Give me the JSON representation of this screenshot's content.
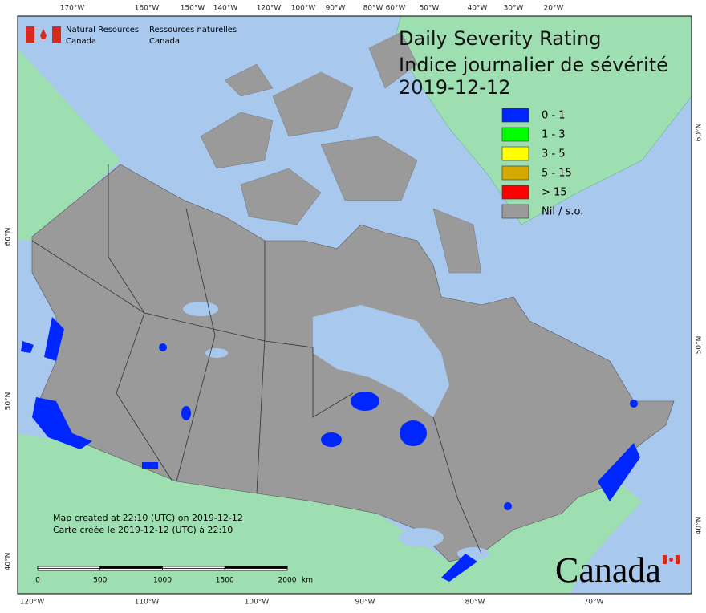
{
  "header": {
    "agency_en": [
      "Natural Resources",
      "Canada"
    ],
    "agency_fr": [
      "Ressources naturelles",
      "Canada"
    ]
  },
  "title": [
    "Daily Severity Rating",
    "Indice journalier de sévérité",
    "2019-12-12"
  ],
  "legend": [
    {
      "label": "0 - 1",
      "color": "#0026ff"
    },
    {
      "label": "1 - 3",
      "color": "#00ff00"
    },
    {
      "label": "3 - 5",
      "color": "#ffff00"
    },
    {
      "label": "5 - 15",
      "color": "#d4aa00"
    },
    {
      "label": "> 15",
      "color": "#ff0000"
    },
    {
      "label": "Nil / s.o.",
      "color": "#9a9a9a"
    }
  ],
  "graticule": {
    "top": [
      "170°W",
      "160°W",
      "150°W",
      "140°W",
      "120°W",
      "100°W",
      "90°W",
      "80°W",
      "60°W",
      "50°W",
      "40°W",
      "30°W",
      "20°W"
    ],
    "bottom": [
      "120°W",
      "110°W",
      "100°W",
      "90°W",
      "80°W",
      "70°W"
    ],
    "left": [
      "60°N",
      "50°N",
      "40°N"
    ],
    "right": [
      "60°N",
      "50°N",
      "40°N"
    ]
  },
  "footer": {
    "created": [
      "Map created at 22:10 (UTC) on 2019-12-12",
      "Carte créée le 2019-12-12 (UTC) à 22:10"
    ]
  },
  "scale": {
    "labels": [
      "0",
      "500",
      "1000",
      "1500",
      "2000"
    ],
    "unit": "km"
  },
  "wordmark": "Canada"
}
